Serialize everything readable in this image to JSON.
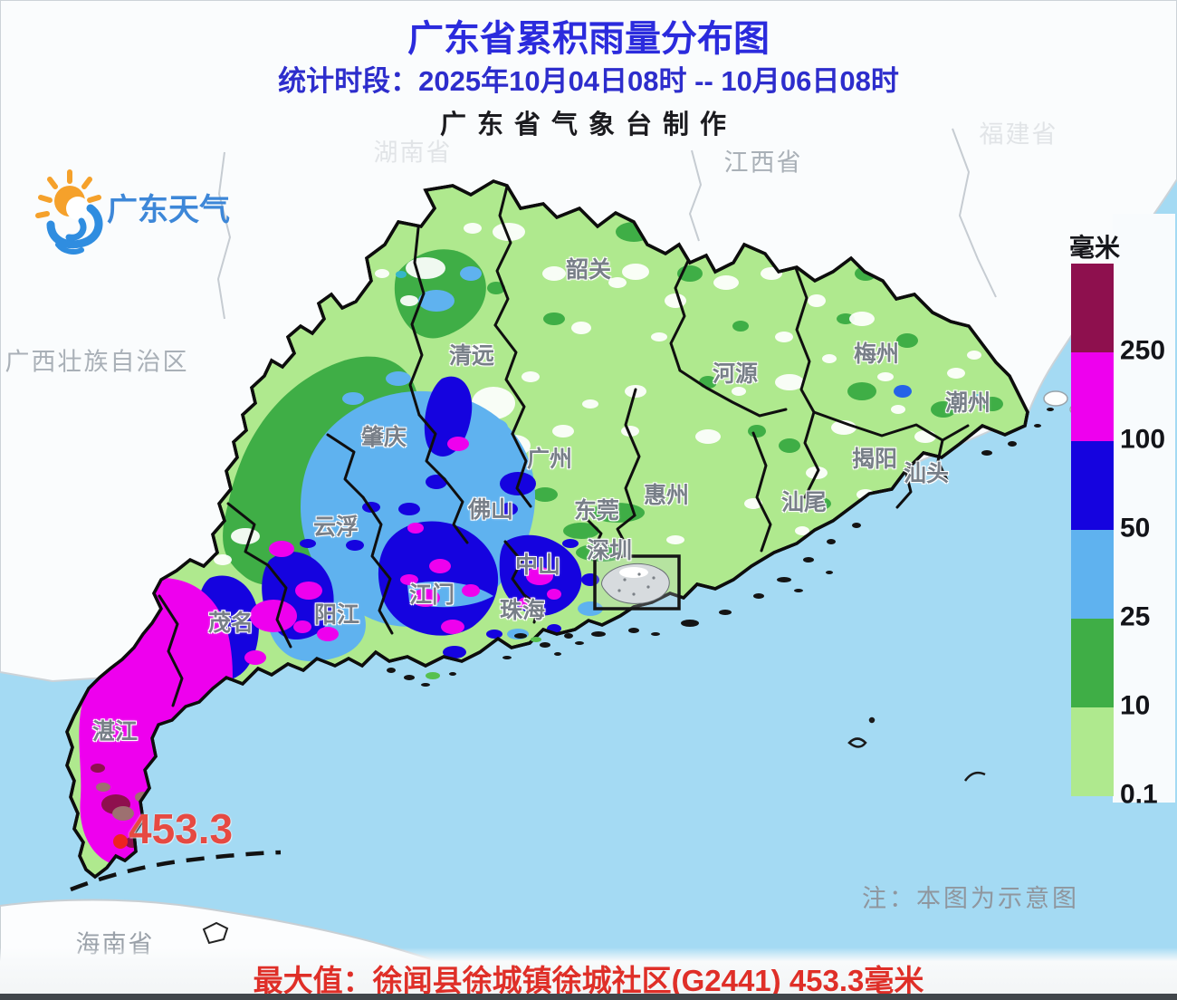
{
  "header": {
    "title": "广东省累积雨量分布图",
    "subtitle": "统计时段：2025年10月04日08时  --  10月06日08时",
    "producer": "广东省气象台制作"
  },
  "logo": {
    "name": "广东天气"
  },
  "legend": {
    "unit": "毫米",
    "entries": [
      {
        "label": "250",
        "color": "#8e104e"
      },
      {
        "label": "100",
        "color": "#ee00ee"
      },
      {
        "label": "50",
        "color": "#1503df"
      },
      {
        "label": "25",
        "color": "#5fb2ef"
      },
      {
        "label": "10",
        "color": "#3fae46"
      },
      {
        "label": "0.1",
        "color": "#afe98e"
      }
    ]
  },
  "map": {
    "cities": [
      {
        "name": "韶关"
      },
      {
        "name": "清远"
      },
      {
        "name": "肇庆"
      },
      {
        "name": "广州"
      },
      {
        "name": "河源"
      },
      {
        "name": "梅州"
      },
      {
        "name": "潮州"
      },
      {
        "name": "揭阳"
      },
      {
        "name": "汕头"
      },
      {
        "name": "汕尾"
      },
      {
        "name": "惠州"
      },
      {
        "name": "东莞"
      },
      {
        "name": "深圳"
      },
      {
        "name": "佛山"
      },
      {
        "name": "中山"
      },
      {
        "name": "珠海"
      },
      {
        "name": "江门"
      },
      {
        "name": "云浮"
      },
      {
        "name": "阳江"
      },
      {
        "name": "茂名"
      },
      {
        "name": "湛江"
      }
    ],
    "neighbors": [
      {
        "name": "广西壮族自治区"
      },
      {
        "name": "江西省"
      },
      {
        "name": "湖南省"
      },
      {
        "name": "福建省"
      },
      {
        "name": "海南省"
      }
    ],
    "max_label": "453.3",
    "note": "注：本图为示意图"
  },
  "footer": {
    "max_text": "最大值：徐闻县徐城镇徐城社区(G2441) 453.3毫米"
  }
}
